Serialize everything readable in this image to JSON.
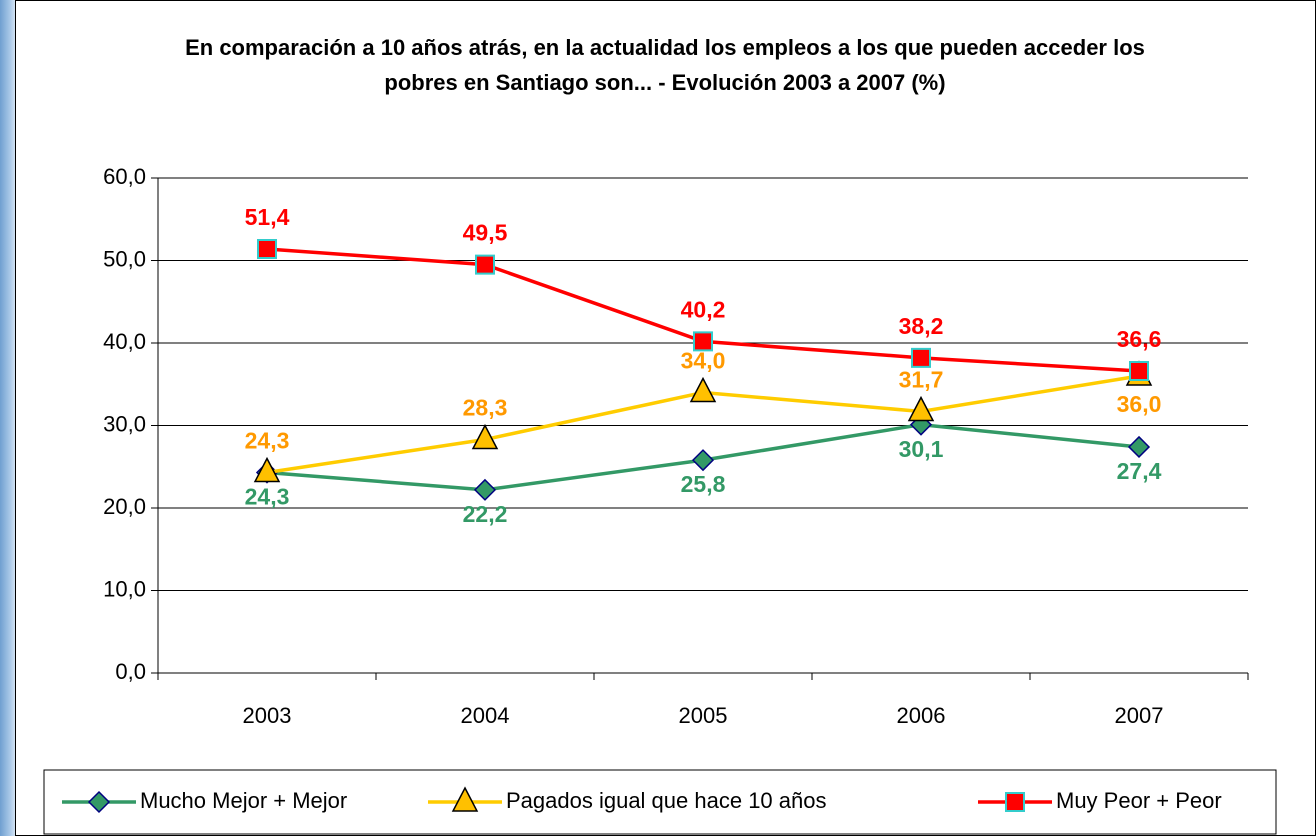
{
  "chart_data": {
    "type": "line",
    "title": "En comparación a 10 años atrás, en la actualidad los empleos a los que pueden acceder los pobres en Santiago son... - Evolución 2003 a 2007 (%)",
    "categories": [
      "2003",
      "2004",
      "2005",
      "2006",
      "2007"
    ],
    "series": [
      {
        "name": "Mucho Mejor + Mejor",
        "color": "#339966",
        "marker": "diamond",
        "values": [
          24.3,
          22.2,
          25.8,
          30.1,
          27.4
        ],
        "value_labels": [
          "24,3",
          "22,2",
          "25,8",
          "30,1",
          "27,4"
        ]
      },
      {
        "name": "Pagados igual que hace 10 años",
        "color": "#FFCC00",
        "marker": "triangle",
        "values": [
          24.3,
          28.3,
          34.0,
          31.7,
          36.0
        ],
        "value_labels": [
          "24,3",
          "28,3",
          "34,0",
          "31,7",
          "36,0"
        ]
      },
      {
        "name": "Muy Peor + Peor",
        "color": "#FF0000",
        "marker": "square",
        "values": [
          51.4,
          49.5,
          40.2,
          38.2,
          36.6
        ],
        "value_labels": [
          "51,4",
          "49,5",
          "40,2",
          "38,2",
          "36,6"
        ]
      }
    ],
    "ylim": [
      0,
      60
    ],
    "yticks": [
      {
        "value": 0,
        "label": "0,0"
      },
      {
        "value": 10,
        "label": "10,0"
      },
      {
        "value": 20,
        "label": "20,0"
      },
      {
        "value": 30,
        "label": "30,0"
      },
      {
        "value": 40,
        "label": "40,0"
      },
      {
        "value": 50,
        "label": "50,0"
      },
      {
        "value": 60,
        "label": "60,0"
      }
    ],
    "grid": true,
    "legend": "bottom"
  }
}
